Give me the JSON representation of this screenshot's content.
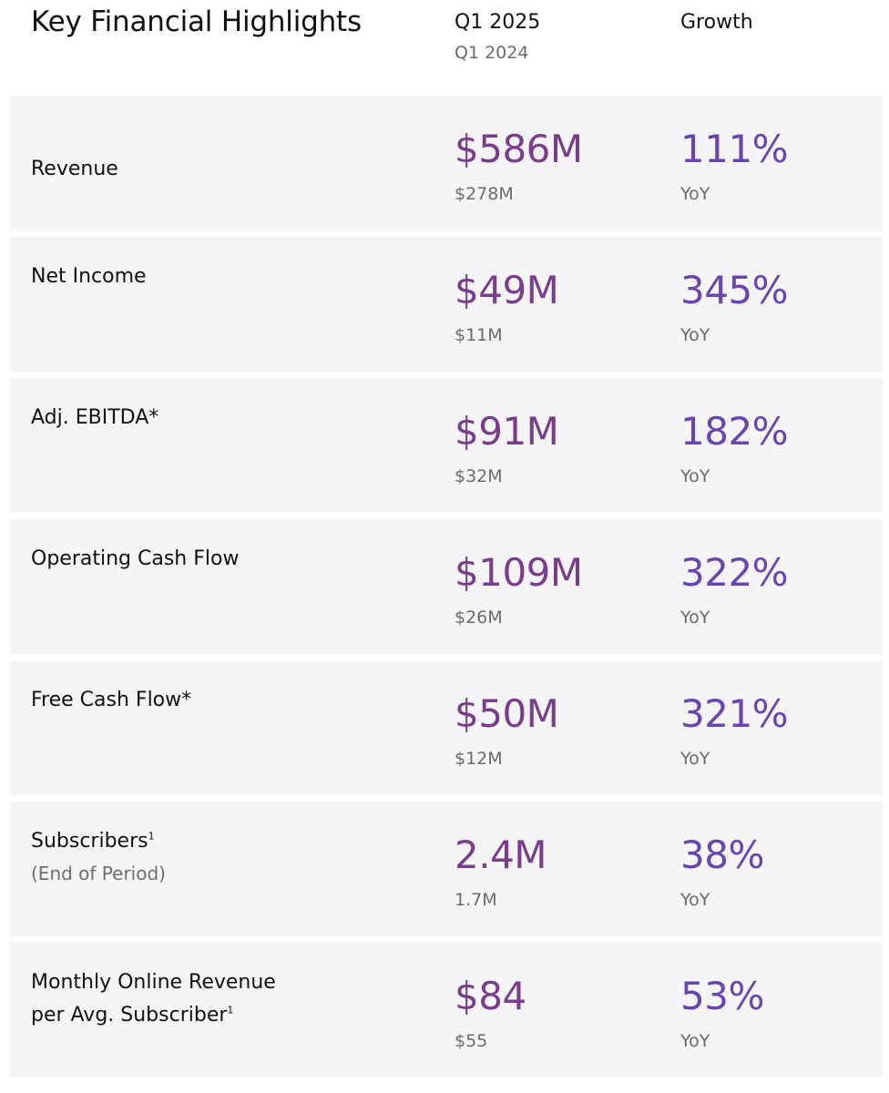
{
  "header": {
    "title": "Key Financial Highlights",
    "current_period": "Q1 2025",
    "prior_period": "Q1 2024",
    "growth_heading": "Growth"
  },
  "colors": {
    "current_value": "#7a3d8c",
    "growth_value": "#6a45b0",
    "row_background": "#f5f5f7"
  },
  "rows": [
    {
      "label": "Revenue",
      "sup": "",
      "sublabel": "",
      "current": "$586M",
      "prior": "$278M",
      "growth": "111%",
      "growth_label": "YoY"
    },
    {
      "label": "Net Income",
      "sup": "",
      "sublabel": "",
      "current": "$49M",
      "prior": "$11M",
      "growth": "345%",
      "growth_label": "YoY"
    },
    {
      "label": "Adj. EBITDA*",
      "sup": "",
      "sublabel": "",
      "current": "$91M",
      "prior": "$32M",
      "growth": "182%",
      "growth_label": "YoY"
    },
    {
      "label": "Operating Cash Flow",
      "sup": "",
      "sublabel": "",
      "current": "$109M",
      "prior": "$26M",
      "growth": "322%",
      "growth_label": "YoY"
    },
    {
      "label": "Free Cash Flow*",
      "sup": "",
      "sublabel": "",
      "current": "$50M",
      "prior": "$12M",
      "growth": "321%",
      "growth_label": "YoY"
    },
    {
      "label": "Subscribers",
      "sup": "1",
      "sublabel": "(End of Period)",
      "current": "2.4M",
      "prior": "1.7M",
      "growth": "38%",
      "growth_label": "YoY"
    },
    {
      "label_line1": "Monthly Online Revenue",
      "label": "per Avg. Subscriber",
      "sup": "1",
      "sublabel": "",
      "current": "$84",
      "prior": "$55",
      "growth": "53%",
      "growth_label": "YoY"
    }
  ]
}
